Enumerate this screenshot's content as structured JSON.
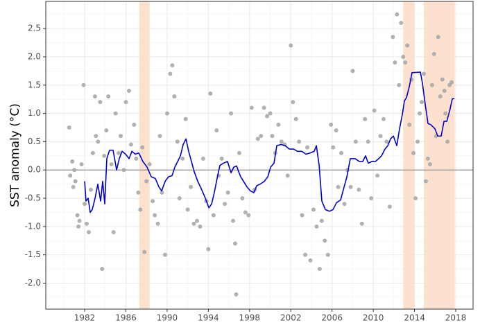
{
  "chart_data": {
    "type": "scatter",
    "ylabel": "SST anomaly (°C)",
    "xlim": [
      1978.23,
      2019.68
    ],
    "ylim": [
      -2.46,
      2.98
    ],
    "xticks": [
      1982,
      1986,
      1990,
      1994,
      1998,
      2002,
      2006,
      2010,
      2014,
      2018
    ],
    "yticks": [
      2.5,
      {
        "value": 2.0,
        "label": "2.0"
      },
      1.5,
      {
        "value": 1.0,
        "label": "1.0"
      },
      0.5,
      {
        "value": 0.0,
        "label": "0.0"
      },
      -0.5,
      {
        "value": -1.0,
        "label": "-1.0"
      },
      -1.5,
      {
        "value": -2.0,
        "label": "-2.0"
      }
    ],
    "grid": true,
    "zero_line": true,
    "shaded_spans": {
      "color": "#fbdcc7",
      "ranges": [
        [
          1987.3,
          1988.3
        ],
        [
          2012.9,
          2014.0
        ],
        [
          2014.9,
          2017.9
        ]
      ]
    },
    "series": [
      {
        "type": "scatter",
        "color": "#a9a9a9",
        "x": [
          1980.5,
          1980.6,
          1980.8,
          1980.9,
          1981.0,
          1981.1,
          1981.3,
          1981.4,
          1981.5,
          1981.7,
          1981.9,
          1982.0,
          1982.2,
          1982.4,
          1982.6,
          1982.8,
          1983.0,
          1983.1,
          1983.3,
          1983.5,
          1983.7,
          1983.9,
          1984.1,
          1984.3,
          1984.6,
          1984.8,
          1985.0,
          1985.3,
          1985.5,
          1985.8,
          1986.0,
          1986.3,
          1986.5,
          1986.8,
          1987.0,
          1987.2,
          1987.4,
          1987.6,
          1987.8,
          1988.0,
          1988.3,
          1988.6,
          1988.8,
          1989.1,
          1989.3,
          1989.5,
          1989.8,
          1990.0,
          1990.3,
          1990.5,
          1990.7,
          1991.0,
          1991.2,
          1991.5,
          1991.8,
          1992.0,
          1992.3,
          1992.6,
          1992.9,
          1993.2,
          1993.5,
          1993.8,
          1994.0,
          1994.2,
          1994.5,
          1994.8,
          1995.0,
          1995.3,
          1995.6,
          1995.9,
          1996.2,
          1996.4,
          1996.6,
          1996.7,
          1997.0,
          1997.3,
          1997.6,
          1997.9,
          1998.2,
          1998.5,
          1998.8,
          1999.1,
          1999.4,
          1999.7,
          2000.0,
          2000.2,
          2000.5,
          2000.8,
          2001.1,
          2001.4,
          2001.7,
          2002.0,
          2002.2,
          2002.5,
          2002.8,
          2003.1,
          2003.4,
          2003.6,
          2003.9,
          2004.2,
          2004.5,
          2004.8,
          2005.0,
          2005.3,
          2005.6,
          2005.9,
          2006.1,
          2006.4,
          2006.6,
          2006.9,
          2007.2,
          2007.5,
          2007.8,
          2008.0,
          2008.3,
          2008.6,
          2008.9,
          2009.2,
          2009.5,
          2009.8,
          2010.1,
          2010.4,
          2010.7,
          2011.0,
          2011.3,
          2011.6,
          2011.9,
          2012.1,
          2012.3,
          2012.5,
          2012.7,
          2012.9,
          2013.1,
          2013.3,
          2013.5,
          2013.7,
          2013.9,
          2014.1,
          2014.3,
          2014.5,
          2014.7,
          2014.9,
          2015.1,
          2015.3,
          2015.5,
          2015.7,
          2015.9,
          2016.1,
          2016.3,
          2016.5,
          2016.7,
          2016.9,
          2017.0,
          2017.2,
          2017.4,
          2017.6
        ],
        "values": [
          0.75,
          -0.1,
          0.15,
          -0.3,
          0.0,
          -0.2,
          -0.8,
          -1.0,
          -0.9,
          0.1,
          1.5,
          -0.6,
          -0.95,
          -1.1,
          -0.35,
          0.3,
          1.3,
          0.6,
          0.5,
          1.2,
          -1.75,
          0.25,
          0.7,
          1.3,
          0.1,
          -1.1,
          1.0,
          0.3,
          0.6,
          0.0,
          1.2,
          1.4,
          0.45,
          0.8,
          0.2,
          -0.4,
          -0.7,
          0.4,
          -1.45,
          -0.2,
          0.1,
          -0.55,
          -0.8,
          -0.95,
          0.6,
          -0.4,
          -1.5,
          1.0,
          1.7,
          1.85,
          1.3,
          0.5,
          -0.5,
          0.2,
          0.9,
          -0.7,
          -0.3,
          -0.95,
          -0.9,
          -1.0,
          0.2,
          -0.55,
          -1.4,
          1.35,
          -0.8,
          0.7,
          -0.1,
          0.2,
          -0.6,
          -0.4,
          1.0,
          -0.9,
          -1.3,
          -2.2,
          0.3,
          -0.5,
          -0.75,
          -0.8,
          1.1,
          -0.35,
          0.55,
          0.6,
          1.1,
          0.95,
          1.0,
          0.6,
          0.3,
          0.8,
          0.5,
          0.45,
          -0.1,
          2.2,
          1.2,
          0.9,
          0.5,
          -0.8,
          -1.5,
          0.4,
          -1.6,
          -0.7,
          -1.0,
          -1.75,
          -0.9,
          -1.25,
          -1.5,
          0.8,
          0.4,
          0.7,
          -0.3,
          0.3,
          -0.6,
          0.0,
          -0.3,
          1.75,
          0.5,
          -0.35,
          -0.95,
          0.9,
          0.5,
          -0.5,
          1.05,
          -0.1,
          0.6,
          0.9,
          0.5,
          -0.65,
          2.35,
          1.9,
          2.75,
          1.5,
          2.6,
          2.0,
          1.9,
          2.2,
          0.8,
          1.6,
          0.3,
          -0.5,
          0.5,
          1.0,
          1.2,
          1.7,
          -0.2,
          0.2,
          0.1,
          1.5,
          2.05,
          0.6,
          2.35,
          1.3,
          1.6,
          1.4,
          1.0,
          0.5,
          1.5,
          1.55
        ]
      },
      {
        "type": "line",
        "color": "#0000cd",
        "x": [
          1982.0,
          1982.13,
          1982.34,
          1982.54,
          1982.74,
          1983.01,
          1983.28,
          1983.55,
          1983.75,
          1983.95,
          1984.15,
          1984.42,
          1984.76,
          1985.1,
          1985.36,
          1985.63,
          1985.97,
          1986.31,
          1986.58,
          1986.91,
          1987.25,
          1987.65,
          1988.06,
          1988.46,
          1988.86,
          1989.2,
          1989.47,
          1989.81,
          1990.14,
          1990.48,
          1990.75,
          1991.02,
          1991.29,
          1991.56,
          1991.83,
          1992.09,
          1992.36,
          1992.63,
          1992.97,
          1993.31,
          1993.71,
          1994.05,
          1994.32,
          1994.58,
          1994.85,
          1995.12,
          1995.46,
          1995.86,
          1996.2,
          1996.47,
          1996.74,
          1996.94,
          1997.14,
          1997.41,
          1997.75,
          1998.08,
          1998.42,
          1998.69,
          1999.03,
          1999.43,
          1999.77,
          2000.04,
          2000.37,
          2000.64,
          2001.04,
          2001.45,
          2001.85,
          2002.26,
          2002.66,
          2003.06,
          2003.47,
          2003.87,
          2004.27,
          2004.48,
          2004.75,
          2005.01,
          2005.35,
          2005.75,
          2006.09,
          2006.43,
          2006.83,
          2007.17,
          2007.44,
          2007.77,
          2008.24,
          2008.65,
          2008.98,
          2009.25,
          2009.52,
          2009.86,
          2010.2,
          2010.53,
          2010.8,
          2011.14,
          2011.41,
          2011.68,
          2011.95,
          2012.28,
          2012.55,
          2012.82,
          2013.02,
          2013.22,
          2013.49,
          2013.76,
          2014.57,
          2014.77,
          2015.04,
          2015.31,
          2015.58,
          2015.98,
          2016.25,
          2016.59,
          2016.86,
          2017.13,
          2017.4,
          2017.67,
          2017.87
        ],
        "values": [
          -0.2,
          -0.55,
          -0.5,
          -0.75,
          -0.7,
          -0.5,
          -0.25,
          -0.55,
          -0.2,
          -0.6,
          0.2,
          0.35,
          0.35,
          0.0,
          0.2,
          0.33,
          0.28,
          0.2,
          0.33,
          0.28,
          0.3,
          0.15,
          0.05,
          -0.12,
          -0.15,
          -0.3,
          -0.37,
          -0.2,
          -0.12,
          -0.1,
          0.05,
          0.15,
          0.25,
          0.45,
          0.55,
          0.33,
          0.15,
          -0.03,
          -0.2,
          -0.33,
          -0.5,
          -0.67,
          -0.6,
          -0.4,
          -0.15,
          0.08,
          0.12,
          0.15,
          -0.05,
          0.05,
          0.07,
          -0.03,
          -0.12,
          -0.2,
          -0.3,
          -0.37,
          -0.4,
          -0.28,
          -0.25,
          -0.2,
          -0.12,
          0.05,
          0.12,
          0.43,
          0.45,
          0.43,
          0.37,
          0.37,
          0.33,
          0.33,
          0.28,
          0.3,
          0.33,
          0.43,
          0.08,
          -0.55,
          -0.7,
          -0.73,
          -0.7,
          -0.58,
          -0.53,
          -0.3,
          -0.12,
          0.2,
          0.2,
          0.15,
          0.15,
          0.25,
          0.12,
          0.15,
          0.15,
          0.2,
          0.25,
          0.37,
          0.43,
          0.55,
          0.6,
          0.43,
          0.73,
          0.98,
          1.22,
          1.28,
          1.47,
          1.72,
          1.73,
          1.53,
          1.16,
          0.82,
          0.8,
          0.73,
          0.6,
          0.6,
          0.86,
          0.86,
          1.04,
          1.26,
          1.26
        ]
      }
    ]
  }
}
